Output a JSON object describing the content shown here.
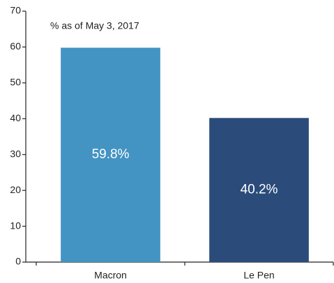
{
  "chart_data": {
    "type": "bar",
    "subtitle": "% as of May 3, 2017",
    "categories": [
      "Macron",
      "Le Pen"
    ],
    "values": [
      59.8,
      40.2
    ],
    "value_labels": [
      "59.8%",
      "40.2%"
    ],
    "colors": [
      "#4393c3",
      "#2b4c7a"
    ],
    "ylim": [
      0,
      70
    ],
    "yticks": [
      0,
      10,
      20,
      30,
      40,
      50,
      60,
      70
    ],
    "grid": false
  }
}
